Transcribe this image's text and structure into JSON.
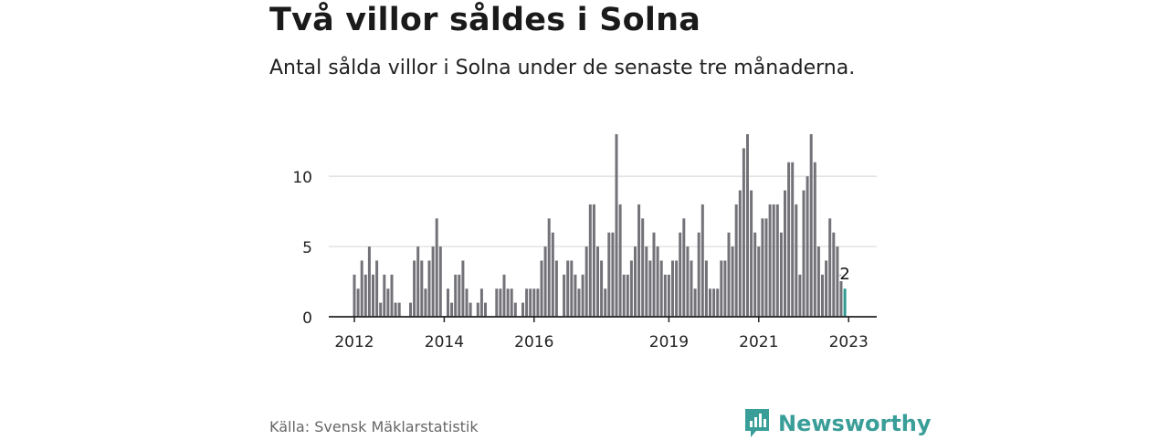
{
  "header": {
    "title": "Två villor såldes i Solna",
    "subtitle": "Antal sålda villor i Solna under de senaste tre månaderna."
  },
  "footer": {
    "source": "Källa: Svensk Mäklarstatistik",
    "brand": "Newsworthy"
  },
  "colors": {
    "bar": "#737278",
    "highlight": "#2f9a91",
    "grid": "#d9d9d9",
    "brand": "#3a9e98"
  },
  "chart_data": {
    "type": "bar",
    "title": "Två villor såldes i Solna",
    "subtitle": "Antal sålda villor i Solna under de senaste tre månaderna.",
    "xlabel": "",
    "ylabel": "",
    "ylim": [
      0,
      13
    ],
    "yticks": [
      0,
      5,
      10
    ],
    "grid": true,
    "x_start": "2012-01",
    "x_ticks": [
      {
        "label": "2012",
        "x": "2012-01"
      },
      {
        "label": "2014",
        "x": "2014-01"
      },
      {
        "label": "2016",
        "x": "2016-01"
      },
      {
        "label": "2019",
        "x": "2019-01"
      },
      {
        "label": "2021",
        "x": "2021-01"
      },
      {
        "label": "2023",
        "x": "2023-01"
      }
    ],
    "values": [
      3,
      2,
      4,
      3,
      5,
      3,
      4,
      1,
      3,
      2,
      3,
      1,
      1,
      0,
      0,
      1,
      4,
      5,
      4,
      2,
      4,
      5,
      7,
      5,
      0,
      2,
      1,
      3,
      3,
      4,
      2,
      1,
      0,
      1,
      2,
      1,
      0,
      0,
      2,
      2,
      3,
      2,
      2,
      1,
      0,
      1,
      2,
      2,
      2,
      2,
      4,
      5,
      7,
      6,
      4,
      0,
      3,
      4,
      4,
      3,
      2,
      3,
      5,
      8,
      8,
      5,
      4,
      2,
      6,
      6,
      13,
      8,
      3,
      3,
      4,
      5,
      8,
      7,
      5,
      4,
      6,
      5,
      4,
      3,
      3,
      4,
      4,
      6,
      7,
      5,
      4,
      2,
      6,
      8,
      4,
      2,
      2,
      2,
      4,
      4,
      6,
      5,
      8,
      9,
      12,
      13,
      9,
      6,
      5,
      7,
      7,
      8,
      8,
      8,
      6,
      9,
      11,
      11,
      8,
      3,
      9,
      10,
      13,
      11,
      5,
      3,
      4,
      7,
      6,
      5,
      3,
      2
    ],
    "highlight_index": 131,
    "annotation": {
      "text": "2",
      "index": 131
    }
  }
}
